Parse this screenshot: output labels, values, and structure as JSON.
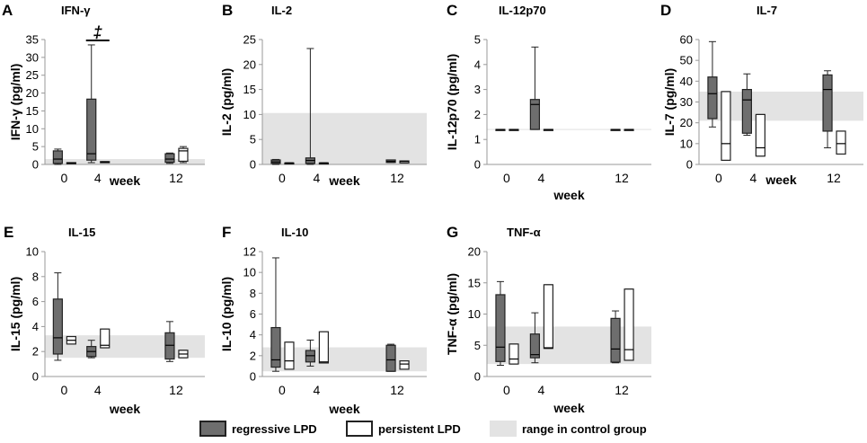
{
  "legend": {
    "regressive": "regressive LPD",
    "persistent": "persistent LPD",
    "control": "range in control group"
  },
  "colors": {
    "regressive": "#6e6e6e",
    "persistent": "#ffffff",
    "control": "#e3e3e3",
    "stroke": "#222222"
  },
  "chart_data": [
    {
      "letter": "A",
      "title": "IFN-γ",
      "type": "box",
      "ylabel": "IFN-γ (pg/ml)",
      "xlabel": "week",
      "xticks": [
        "0",
        "4",
        "12"
      ],
      "ylim": [
        0,
        35
      ],
      "yticks": [
        0,
        5,
        10,
        15,
        20,
        25,
        30,
        35
      ],
      "control_range": [
        0,
        1.5
      ],
      "annotation": "‡",
      "boxes": [
        {
          "week": "0",
          "group": "regressive",
          "min": 0,
          "q1": 0.3,
          "median": 1.5,
          "q3": 3.8,
          "max": 4.3
        },
        {
          "week": "0",
          "group": "persistent",
          "min": 0.4,
          "q1": 0.4,
          "median": 0.4,
          "q3": 0.5,
          "max": 0.5
        },
        {
          "week": "4",
          "group": "regressive",
          "min": 0.5,
          "q1": 1.2,
          "median": 3,
          "q3": 18.3,
          "max": 33.5
        },
        {
          "week": "4",
          "group": "persistent",
          "min": 0.5,
          "q1": 0.5,
          "median": 0.6,
          "q3": 0.8,
          "max": 0.8
        },
        {
          "week": "12",
          "group": "regressive",
          "min": 0.3,
          "q1": 0.6,
          "median": 1.5,
          "q3": 3,
          "max": 3.2
        },
        {
          "week": "12",
          "group": "persistent",
          "min": 0.5,
          "q1": 0.9,
          "median": 3.8,
          "q3": 4.5,
          "max": 5
        }
      ]
    },
    {
      "letter": "B",
      "title": "IL-2",
      "type": "box",
      "ylabel": "IL-2 (pg/ml)",
      "xlabel": "week",
      "xticks": [
        "0",
        "4",
        "12"
      ],
      "ylim": [
        0,
        25
      ],
      "yticks": [
        0,
        5,
        10,
        15,
        20,
        25
      ],
      "control_range": [
        0,
        10.3
      ],
      "boxes": [
        {
          "week": "0",
          "group": "regressive",
          "min": 0,
          "q1": 0.2,
          "median": 0.5,
          "q3": 0.9,
          "max": 1
        },
        {
          "week": "0",
          "group": "persistent",
          "min": 0.3,
          "q1": 0.3,
          "median": 0.3,
          "q3": 0.3,
          "max": 0.3
        },
        {
          "week": "4",
          "group": "regressive",
          "min": 0,
          "q1": 0.2,
          "median": 0.8,
          "q3": 1.3,
          "max": 23.2
        },
        {
          "week": "4",
          "group": "persistent",
          "min": 0.3,
          "q1": 0.3,
          "median": 0.3,
          "q3": 0.3,
          "max": 0.3
        },
        {
          "week": "12",
          "group": "regressive",
          "min": 0.4,
          "q1": 0.4,
          "median": 0.6,
          "q3": 0.9,
          "max": 0.9
        },
        {
          "week": "12",
          "group": "persistent",
          "min": 0.3,
          "q1": 0.3,
          "median": 0.6,
          "q3": 0.7,
          "max": 0.7
        }
      ]
    },
    {
      "letter": "C",
      "title": "IL-12p70",
      "type": "box",
      "ylabel": "IL-12p70 (pg/ml)",
      "xlabel": "week",
      "xticks": [
        "0",
        "4",
        "12"
      ],
      "ylim": [
        0,
        5
      ],
      "yticks": [
        0,
        1,
        2,
        3,
        4,
        5
      ],
      "control_range": [
        1.38,
        1.42
      ],
      "boxes": [
        {
          "week": "0",
          "group": "regressive",
          "min": 1.4,
          "q1": 1.4,
          "median": 1.4,
          "q3": 1.4,
          "max": 1.4
        },
        {
          "week": "0",
          "group": "persistent",
          "min": 1.4,
          "q1": 1.4,
          "median": 1.4,
          "q3": 1.4,
          "max": 1.4
        },
        {
          "week": "4",
          "group": "regressive",
          "min": 1.4,
          "q1": 1.4,
          "median": 2.4,
          "q3": 2.6,
          "max": 4.7
        },
        {
          "week": "4",
          "group": "persistent",
          "min": 1.4,
          "q1": 1.4,
          "median": 1.4,
          "q3": 1.4,
          "max": 1.4
        },
        {
          "week": "12",
          "group": "regressive",
          "min": 1.4,
          "q1": 1.4,
          "median": 1.4,
          "q3": 1.4,
          "max": 1.4
        },
        {
          "week": "12",
          "group": "persistent",
          "min": 1.4,
          "q1": 1.4,
          "median": 1.4,
          "q3": 1.4,
          "max": 1.4
        }
      ]
    },
    {
      "letter": "D",
      "title": "IL-7",
      "type": "box",
      "ylabel": "IL-7 (pg/ml)",
      "xlabel": "week",
      "xticks": [
        "0",
        "4",
        "12"
      ],
      "ylim": [
        0,
        60
      ],
      "yticks": [
        0,
        10,
        20,
        30,
        40,
        50,
        60
      ],
      "control_range": [
        21,
        35
      ],
      "boxes": [
        {
          "week": "0",
          "group": "regressive",
          "min": 18,
          "q1": 22,
          "median": 34,
          "q3": 42,
          "max": 59
        },
        {
          "week": "0",
          "group": "persistent",
          "min": 2,
          "q1": 2,
          "median": 10,
          "q3": 35,
          "max": 35
        },
        {
          "week": "4",
          "group": "regressive",
          "min": 14,
          "q1": 15,
          "median": 31,
          "q3": 36,
          "max": 43.5
        },
        {
          "week": "4",
          "group": "persistent",
          "min": 4,
          "q1": 4,
          "median": 8,
          "q3": 24,
          "max": 24
        },
        {
          "week": "12",
          "group": "regressive",
          "min": 8,
          "q1": 16,
          "median": 36,
          "q3": 43,
          "max": 45
        },
        {
          "week": "12",
          "group": "persistent",
          "min": 5,
          "q1": 5,
          "median": 10,
          "q3": 16,
          "max": 16
        }
      ]
    },
    {
      "letter": "E",
      "title": "IL-15",
      "type": "box",
      "ylabel": "IL-15 (pg/ml)",
      "xlabel": "week",
      "xticks": [
        "0",
        "4",
        "12"
      ],
      "ylim": [
        0,
        10
      ],
      "yticks": [
        0,
        2,
        4,
        6,
        8,
        10
      ],
      "control_range": [
        1.5,
        3.3
      ],
      "boxes": [
        {
          "week": "0",
          "group": "regressive",
          "min": 1.3,
          "q1": 1.8,
          "median": 3.1,
          "q3": 6.2,
          "max": 8.3
        },
        {
          "week": "0",
          "group": "persistent",
          "min": 2.6,
          "q1": 2.6,
          "median": 2.9,
          "q3": 3.2,
          "max": 3.2
        },
        {
          "week": "4",
          "group": "regressive",
          "min": 1.5,
          "q1": 1.6,
          "median": 2,
          "q3": 2.4,
          "max": 2.9
        },
        {
          "week": "4",
          "group": "persistent",
          "min": 2.3,
          "q1": 2.3,
          "median": 2.5,
          "q3": 3.8,
          "max": 3.8
        },
        {
          "week": "12",
          "group": "regressive",
          "min": 1.2,
          "q1": 1.4,
          "median": 2.5,
          "q3": 3.5,
          "max": 4.4
        },
        {
          "week": "12",
          "group": "persistent",
          "min": 1.5,
          "q1": 1.5,
          "median": 1.8,
          "q3": 2.1,
          "max": 2.1
        }
      ]
    },
    {
      "letter": "F",
      "title": "IL-10",
      "type": "box",
      "ylabel": "IL-10 (pg/ml)",
      "xlabel": "week",
      "xticks": [
        "0",
        "4",
        "12"
      ],
      "ylim": [
        0,
        12
      ],
      "yticks": [
        0,
        2,
        4,
        6,
        8,
        10,
        12
      ],
      "control_range": [
        0.5,
        2.8
      ],
      "boxes": [
        {
          "week": "0",
          "group": "regressive",
          "min": 0.5,
          "q1": 0.9,
          "median": 1.6,
          "q3": 4.7,
          "max": 11.4
        },
        {
          "week": "0",
          "group": "persistent",
          "min": 0.7,
          "q1": 0.7,
          "median": 1.5,
          "q3": 3.3,
          "max": 3.3
        },
        {
          "week": "4",
          "group": "regressive",
          "min": 1,
          "q1": 1.4,
          "median": 2,
          "q3": 2.5,
          "max": 3.5
        },
        {
          "week": "4",
          "group": "persistent",
          "min": 1.3,
          "q1": 1.3,
          "median": 1.4,
          "q3": 4.3,
          "max": 4.3
        },
        {
          "week": "12",
          "group": "regressive",
          "min": 0.5,
          "q1": 0.5,
          "median": 1.6,
          "q3": 3,
          "max": 3.1
        },
        {
          "week": "12",
          "group": "persistent",
          "min": 0.7,
          "q1": 0.7,
          "median": 1.2,
          "q3": 1.5,
          "max": 1.5
        }
      ]
    },
    {
      "letter": "G",
      "title": "TNF-α",
      "type": "box",
      "ylabel": "TNF-α (pg/ml)",
      "xlabel": "week",
      "xticks": [
        "0",
        "4",
        "12"
      ],
      "ylim": [
        0,
        20
      ],
      "yticks": [
        0,
        5,
        10,
        15,
        20
      ],
      "control_range": [
        2,
        8
      ],
      "boxes": [
        {
          "week": "0",
          "group": "regressive",
          "min": 1.8,
          "q1": 2.4,
          "median": 4.7,
          "q3": 13.1,
          "max": 15.2
        },
        {
          "week": "0",
          "group": "persistent",
          "min": 2,
          "q1": 2,
          "median": 2.8,
          "q3": 5.2,
          "max": 5.2
        },
        {
          "week": "4",
          "group": "regressive",
          "min": 2.2,
          "q1": 3,
          "median": 3.5,
          "q3": 6.8,
          "max": 10.2
        },
        {
          "week": "4",
          "group": "persistent",
          "min": 4.5,
          "q1": 4.5,
          "median": 4.6,
          "q3": 14.7,
          "max": 14.7
        },
        {
          "week": "12",
          "group": "regressive",
          "min": 2.2,
          "q1": 2.3,
          "median": 4.4,
          "q3": 9.3,
          "max": 10.5
        },
        {
          "week": "12",
          "group": "persistent",
          "min": 2.6,
          "q1": 2.6,
          "median": 4.3,
          "q3": 14,
          "max": 14
        }
      ]
    }
  ]
}
